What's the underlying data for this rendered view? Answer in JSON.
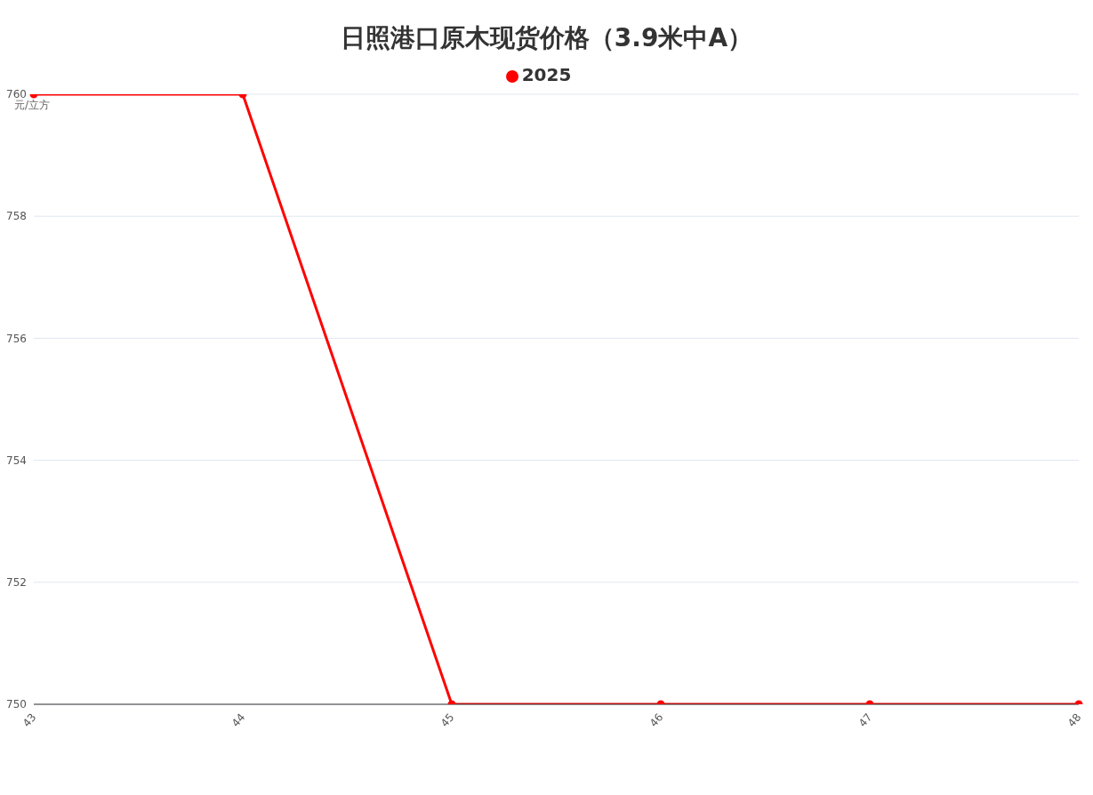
{
  "chart_data": {
    "type": "line",
    "title": "日照港口原木现货价格（3.9米中A）",
    "ylabel": "元/立方",
    "categories": [
      "43",
      "44",
      "45",
      "46",
      "47",
      "48"
    ],
    "series": [
      {
        "name": "2025",
        "color": "#ff0000",
        "values": [
          760,
          760,
          750,
          750,
          750,
          750
        ]
      }
    ],
    "ylim": [
      750,
      760
    ],
    "yticks": [
      750,
      752,
      754,
      756,
      758,
      760
    ],
    "grid": "y",
    "legend": "top",
    "marker": "circle"
  }
}
